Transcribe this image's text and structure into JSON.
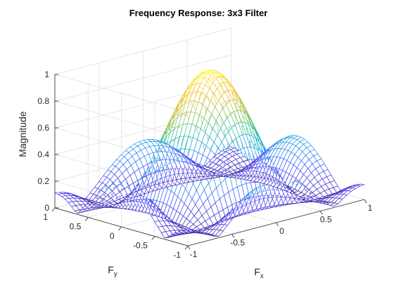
{
  "chart_data": {
    "type": "surface",
    "title": "Frequency Response: 3x3 Filter",
    "xlabel": "F",
    "xlabel_sub": "x",
    "ylabel": "F",
    "ylabel_sub": "y",
    "zlabel": "Magnitude",
    "xlim": [
      -1,
      1
    ],
    "ylim": [
      -1,
      1
    ],
    "zlim": [
      0,
      1
    ],
    "x_ticks": [
      -1,
      -0.5,
      0,
      0.5,
      1
    ],
    "x_tick_labels": [
      "-1",
      "-0.5",
      "0",
      "0.5",
      "1"
    ],
    "y_ticks": [
      -1,
      -0.5,
      0,
      0.5,
      1
    ],
    "y_tick_labels": [
      "-1",
      "-0.5",
      "0",
      "0.5",
      "1"
    ],
    "z_ticks": [
      0,
      0.2,
      0.4,
      0.6,
      0.8,
      1
    ],
    "z_tick_labels": [
      "0",
      "0.2",
      "0.4",
      "0.6",
      "0.8",
      "1"
    ],
    "grid": true,
    "colormap": [
      "#3e26a8",
      "#4743f8",
      "#2c89f0",
      "#1cadd9",
      "#35c192",
      "#96c64e",
      "#dcbc2c",
      "#fccd36",
      "#f9fb15"
    ],
    "mesh_resolution": 40,
    "surface": {
      "function": "|(1 + 2cos(pi*Fx)) * (1 + 2cos(pi*Fy))| / 9",
      "peak": {
        "x": 0,
        "y": 0,
        "z": 1
      },
      "zeros_at": [
        -0.667,
        0.667
      ]
    }
  }
}
